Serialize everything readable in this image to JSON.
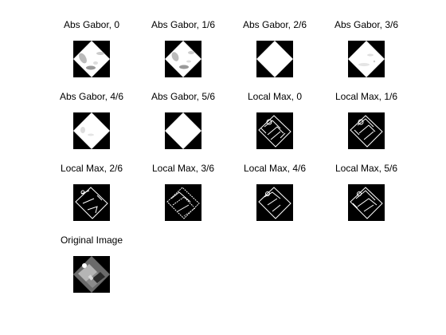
{
  "figure": {
    "panels": [
      {
        "title": "Abs Gabor, 0",
        "kind": "gabor"
      },
      {
        "title": "Abs Gabor, 1/6",
        "kind": "gabor"
      },
      {
        "title": "Abs Gabor, 2/6",
        "kind": "gabor"
      },
      {
        "title": "Abs Gabor, 3/6",
        "kind": "gabor"
      },
      {
        "title": "Abs Gabor, 4/6",
        "kind": "gabor"
      },
      {
        "title": "Abs Gabor, 5/6",
        "kind": "gabor"
      },
      {
        "title": "Local Max, 0",
        "kind": "localmax"
      },
      {
        "title": "Local Max, 1/6",
        "kind": "localmax"
      },
      {
        "title": "Local Max, 2/6",
        "kind": "localmax"
      },
      {
        "title": "Local Max, 3/6",
        "kind": "localmax"
      },
      {
        "title": "Local Max, 4/6",
        "kind": "localmax"
      },
      {
        "title": "Local Max, 5/6",
        "kind": "localmax"
      },
      {
        "title": "Original Image",
        "kind": "original"
      }
    ]
  }
}
